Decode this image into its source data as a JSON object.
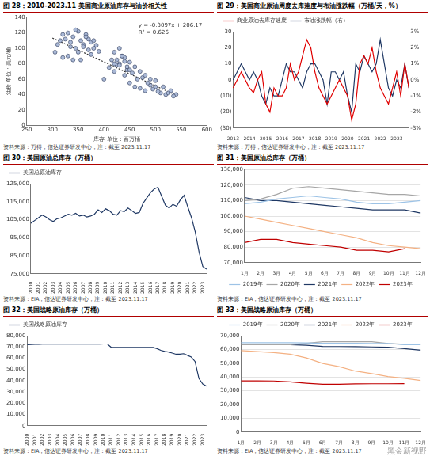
{
  "chart_data": [
    {
      "type": "scatter",
      "title": "图 28：2010-2023.11 美国商业原油库存与油价相关性",
      "source": "资料来源：万得，信达证券研发中心，注：截至 2023.11.17",
      "x_label": "库存 单位：百万桶",
      "y_label": "油价 单位：美元/桶",
      "annotations": [
        "y = -0.3097x + 206.17",
        "R² = 0.626"
      ],
      "xlim": [
        250,
        600
      ],
      "xticks": [
        250,
        300,
        350,
        400,
        450,
        500,
        550,
        600
      ],
      "ylim": [
        0,
        140
      ],
      "yticks": [
        0,
        20,
        40,
        60,
        80,
        100,
        120,
        140
      ],
      "grid": false,
      "series": [
        {
          "color": "#a9b8d6",
          "marker": "circle",
          "x": [
            305,
            310,
            315,
            320,
            325,
            330,
            335,
            340,
            345,
            350,
            355,
            360,
            365,
            370,
            375,
            380,
            385,
            390,
            330,
            340,
            350,
            360,
            370,
            380,
            320,
            345,
            365,
            375,
            355,
            335,
            400,
            410,
            420,
            430,
            440,
            450,
            460,
            470,
            480,
            490,
            500,
            510,
            520,
            530,
            540,
            415,
            425,
            435,
            445,
            455,
            465,
            475,
            485,
            495,
            505,
            515,
            525,
            535,
            420,
            430,
            440,
            450,
            460,
            470,
            480,
            490,
            500,
            420,
            425,
            430,
            435,
            440,
            445,
            450
          ],
          "values": [
            95,
            105,
            110,
            118,
            112,
            120,
            108,
            115,
            100,
            122,
            110,
            105,
            118,
            112,
            108,
            100,
            104,
            96,
            90,
            85,
            95,
            102,
            98,
            110,
            88,
            124,
            115,
            92,
            85,
            102,
            60,
            75,
            70,
            80,
            65,
            55,
            50,
            48,
            45,
            52,
            50,
            42,
            40,
            45,
            40,
            85,
            78,
            90,
            72,
            68,
            60,
            62,
            55,
            47,
            44,
            50,
            42,
            38,
            95,
            100,
            88,
            82,
            76,
            70,
            65,
            60,
            58,
            80,
            85,
            78,
            90,
            83,
            76,
            72
          ]
        },
        {
          "type": "line",
          "line_style": "dotted",
          "color": "#333333",
          "x": [
            300,
            540
          ],
          "values": [
            113.3,
            38.9
          ]
        }
      ]
    },
    {
      "type": "line",
      "title": "图 29：美国商业原油周度去库速度与布油涨跌幅（万桶/天，%）",
      "source": "资料来源：万得，信达证券研发中心，注：截至 2023.11.17",
      "categories": [
        "2013",
        null,
        null,
        null,
        "2014",
        null,
        null,
        null,
        "2015",
        null,
        null,
        null,
        "2016",
        null,
        null,
        null,
        "2017",
        null,
        null,
        null,
        "2018",
        null,
        null,
        null,
        "2019",
        null,
        null,
        null,
        "2020",
        null,
        null,
        null,
        "2021",
        null,
        null,
        null,
        "2022",
        null,
        null,
        null,
        "2023",
        null,
        null,
        null
      ],
      "ylim": [
        -30,
        30
      ],
      "yticks": [
        {
          "value": -30,
          "label": "(30)"
        },
        {
          "value": -20,
          "label": "(20)"
        },
        {
          "value": -10,
          "label": "(10)"
        },
        0,
        10,
        20,
        30
      ],
      "y2lim": [
        -3,
        3
      ],
      "y2ticks": [
        {
          "value": -3,
          "label": "-3%"
        },
        {
          "value": -2,
          "label": "-2%"
        },
        {
          "value": -1,
          "label": "-1%"
        },
        {
          "value": 0,
          "label": "0%"
        },
        {
          "value": 1,
          "label": "1%"
        },
        {
          "value": 2,
          "label": "2%"
        },
        {
          "value": 3,
          "label": "3%"
        }
      ],
      "grid": false,
      "legend": "upper left",
      "series": [
        {
          "name": "商业原油去库存速度",
          "color": "#e00000",
          "values": [
            -5,
            0,
            5,
            0,
            -5,
            -8,
            0,
            5,
            -15,
            -20,
            -5,
            -10,
            -10,
            -5,
            10,
            0,
            5,
            15,
            25,
            20,
            5,
            -5,
            -10,
            -15,
            -10,
            -5,
            0,
            -5,
            -10,
            -25,
            -15,
            10,
            15,
            10,
            20,
            5,
            -5,
            -10,
            -15,
            -5,
            5,
            -10,
            10,
            -5
          ]
        },
        {
          "name": "布油涨跌幅（右）",
          "color": "#1f3864",
          "axis": "y2",
          "values": [
            0,
            0.5,
            1,
            0.5,
            0,
            0.5,
            0,
            -1,
            -1.5,
            -0.5,
            -1,
            -1,
            0,
            1,
            0.5,
            0.5,
            0,
            -0.5,
            0.5,
            1,
            1,
            0.5,
            0,
            -1.5,
            0.5,
            0.5,
            0,
            0.5,
            -1,
            -2,
            1,
            0.5,
            1.5,
            1,
            0.5,
            1,
            2.5,
            1,
            -0.5,
            -1,
            0,
            -0.5,
            1,
            -0.5
          ]
        }
      ]
    },
    {
      "type": "line",
      "title": "图 30：美国原油总库存（万桶）",
      "source": "资料来源：EIA，信达证券研发中心，注：截至 2023.11.17",
      "categories": [
        "2000",
        null,
        "2001",
        null,
        "2002",
        null,
        "2003",
        null,
        "2004",
        null,
        "2005",
        null,
        "2006",
        null,
        "2007",
        null,
        "2008",
        null,
        "2009",
        null,
        "2010",
        null,
        "2011",
        null,
        "2012",
        null,
        "2013",
        null,
        "2014",
        null,
        "2015",
        null,
        "2016",
        null,
        "2017",
        null,
        "2018",
        null,
        "2019",
        null,
        "2020",
        null,
        "2021",
        null,
        "2022",
        null,
        "2023",
        null
      ],
      "ylim": [
        75000,
        125000
      ],
      "yticks": [
        {
          "value": 75000,
          "label": "75,000"
        },
        {
          "value": 85000,
          "label": "85,000"
        },
        {
          "value": 95000,
          "label": "95,000"
        },
        {
          "value": 105000,
          "label": "105,000"
        },
        {
          "value": 115000,
          "label": "115,000"
        },
        {
          "value": 125000,
          "label": "125,000"
        }
      ],
      "grid": false,
      "legend": "upper left",
      "series": [
        {
          "name": "美国总原油库存",
          "color": "#1f3864",
          "values": [
            103000,
            104500,
            106000,
            107500,
            106500,
            105000,
            104000,
            105500,
            106000,
            107000,
            108000,
            107500,
            108500,
            107000,
            107500,
            106500,
            107000,
            108000,
            110500,
            109000,
            111000,
            110000,
            108000,
            107500,
            110000,
            109500,
            111500,
            110000,
            108500,
            109000,
            114000,
            117000,
            120000,
            122000,
            123000,
            118000,
            113000,
            111500,
            113500,
            112500,
            116000,
            118500,
            112000,
            106000,
            98000,
            87000,
            79000,
            77500
          ]
        }
      ]
    },
    {
      "type": "line",
      "title": "图 31：美国原油总库存（万桶）",
      "source": "资料来源：EIA，信达证券研发中心，注：截至 2023.11.17",
      "categories": [
        "1月",
        "2月",
        "3月",
        "4月",
        "5月",
        "6月",
        "7月",
        "8月",
        "9月",
        "10月",
        "11月",
        "12月"
      ],
      "ylim": [
        70000,
        130000
      ],
      "yticks": [
        {
          "value": 70000,
          "label": "70,000"
        },
        {
          "value": 80000,
          "label": "80,000"
        },
        {
          "value": 90000,
          "label": "90,000"
        },
        {
          "value": 100000,
          "label": "100,000"
        },
        {
          "value": 110000,
          "label": "110,000"
        },
        {
          "value": 120000,
          "label": "120,000"
        },
        {
          "value": 130000,
          "label": "130,000"
        }
      ],
      "grid": true,
      "legend": "bottom",
      "series": [
        {
          "name": "2019年",
          "color": "#9dc3e6",
          "values": [
            108000,
            109000,
            111000,
            112000,
            113000,
            112000,
            111000,
            109000,
            108000,
            108000,
            109000,
            110000
          ]
        },
        {
          "name": "2020年",
          "color": "#a6a6a6",
          "values": [
            110000,
            111000,
            114000,
            118000,
            119000,
            118000,
            117000,
            116000,
            115000,
            114000,
            114000,
            113000
          ]
        },
        {
          "name": "2021年",
          "color": "#1f3864",
          "values": [
            112000,
            110000,
            110000,
            109000,
            108000,
            107000,
            106000,
            105000,
            104000,
            104000,
            104000,
            102000
          ]
        },
        {
          "name": "2022年",
          "color": "#f4b183",
          "values": [
            100000,
            98000,
            96000,
            94000,
            92000,
            90000,
            88000,
            86000,
            83000,
            81000,
            80000,
            79000
          ]
        },
        {
          "name": "2023年",
          "color": "#c00000",
          "values": [
            83000,
            85000,
            85000,
            83000,
            82000,
            81000,
            80000,
            78000,
            78000,
            77000,
            79000,
            null
          ]
        }
      ]
    },
    {
      "type": "line",
      "title": "图 32：美国战略原油库存（万桶）",
      "source": "资料来源：EIA，信达证券研发中心，注：截至 2023.11.17",
      "categories": [
        "2000",
        null,
        "2001",
        null,
        "2002",
        null,
        "2003",
        null,
        "2004",
        null,
        "2005",
        null,
        "2006",
        null,
        "2007",
        null,
        "2008",
        null,
        "2009",
        null,
        "2010",
        null,
        "2011",
        null,
        "2012",
        null,
        "2013",
        null,
        "2014",
        null,
        "2015",
        null,
        "2016",
        null,
        "2017",
        null,
        "2018",
        null,
        "2019",
        null,
        "2020",
        null,
        "2021",
        null,
        "2022",
        null,
        "2023",
        null
      ],
      "ylim": [
        0,
        80000
      ],
      "yticks": [
        0,
        {
          "value": 10000,
          "label": "10,000"
        },
        {
          "value": 20000,
          "label": "20,000"
        },
        {
          "value": 30000,
          "label": "30,000"
        },
        {
          "value": 40000,
          "label": "40,000"
        },
        {
          "value": 50000,
          "label": "50,000"
        },
        {
          "value": 60000,
          "label": "60,000"
        },
        {
          "value": 70000,
          "label": "70,000"
        },
        {
          "value": 80000,
          "label": "80,000"
        }
      ],
      "grid": false,
      "legend": "upper left",
      "series": [
        {
          "name": "美国战略原油库存",
          "color": "#1f3864",
          "values": [
            72000,
            72200,
            72300,
            72400,
            72500,
            72500,
            72500,
            72500,
            72500,
            72500,
            72500,
            72500,
            72500,
            72500,
            72500,
            72500,
            72500,
            72500,
            72500,
            72500,
            72600,
            72600,
            69600,
            69600,
            69500,
            69500,
            69500,
            69500,
            69500,
            69500,
            69500,
            69500,
            69500,
            69500,
            68500,
            67000,
            66000,
            65500,
            64500,
            63500,
            63500,
            64000,
            62500,
            61000,
            57000,
            42000,
            37000,
            35100
          ]
        }
      ]
    },
    {
      "type": "line",
      "title": "图 33：美国战略原油库存（万桶）",
      "source": "资料来源：EIA，信达证券研发中心，注：截至 2023.11.17",
      "categories": [
        "1月",
        "2月",
        "3月",
        "4月",
        "5月",
        "6月",
        "7月",
        "8月",
        "9月",
        "10月",
        "11月",
        "12月"
      ],
      "ylim": [
        0,
        70000
      ],
      "yticks": [
        0,
        {
          "value": 10000,
          "label": "10,000"
        },
        {
          "value": 20000,
          "label": "20,000"
        },
        {
          "value": 30000,
          "label": "30,000"
        },
        {
          "value": 40000,
          "label": "40,000"
        },
        {
          "value": 50000,
          "label": "50,000"
        },
        {
          "value": 60000,
          "label": "60,000"
        },
        {
          "value": 70000,
          "label": "70,000"
        }
      ],
      "grid": true,
      "legend": "top",
      "series": [
        {
          "name": "2019年",
          "color": "#9dc3e6",
          "values": [
            64900,
            64900,
            64900,
            64900,
            64800,
            64500,
            64500,
            64500,
            64400,
            64400,
            63500,
            63500
          ]
        },
        {
          "name": "2020年",
          "color": "#a6a6a6",
          "values": [
            63500,
            63500,
            63500,
            63500,
            64500,
            65600,
            65600,
            65600,
            65600,
            64300,
            63800,
            63800
          ]
        },
        {
          "name": "2021年",
          "color": "#1f3864",
          "values": [
            63800,
            63700,
            63700,
            63500,
            63000,
            62200,
            62100,
            62000,
            61800,
            61600,
            60600,
            59400
          ]
        },
        {
          "name": "2022年",
          "color": "#f4b183",
          "values": [
            59200,
            58400,
            57700,
            56600,
            53800,
            49800,
            47500,
            44300,
            42500,
            40300,
            39000,
            37500
          ]
        },
        {
          "name": "2023年",
          "color": "#c00000",
          "values": [
            37200,
            37200,
            37100,
            36500,
            35500,
            34700,
            34700,
            35000,
            35100,
            35100,
            35200,
            null
          ]
        }
      ]
    }
  ],
  "watermark": "黑金新视野"
}
